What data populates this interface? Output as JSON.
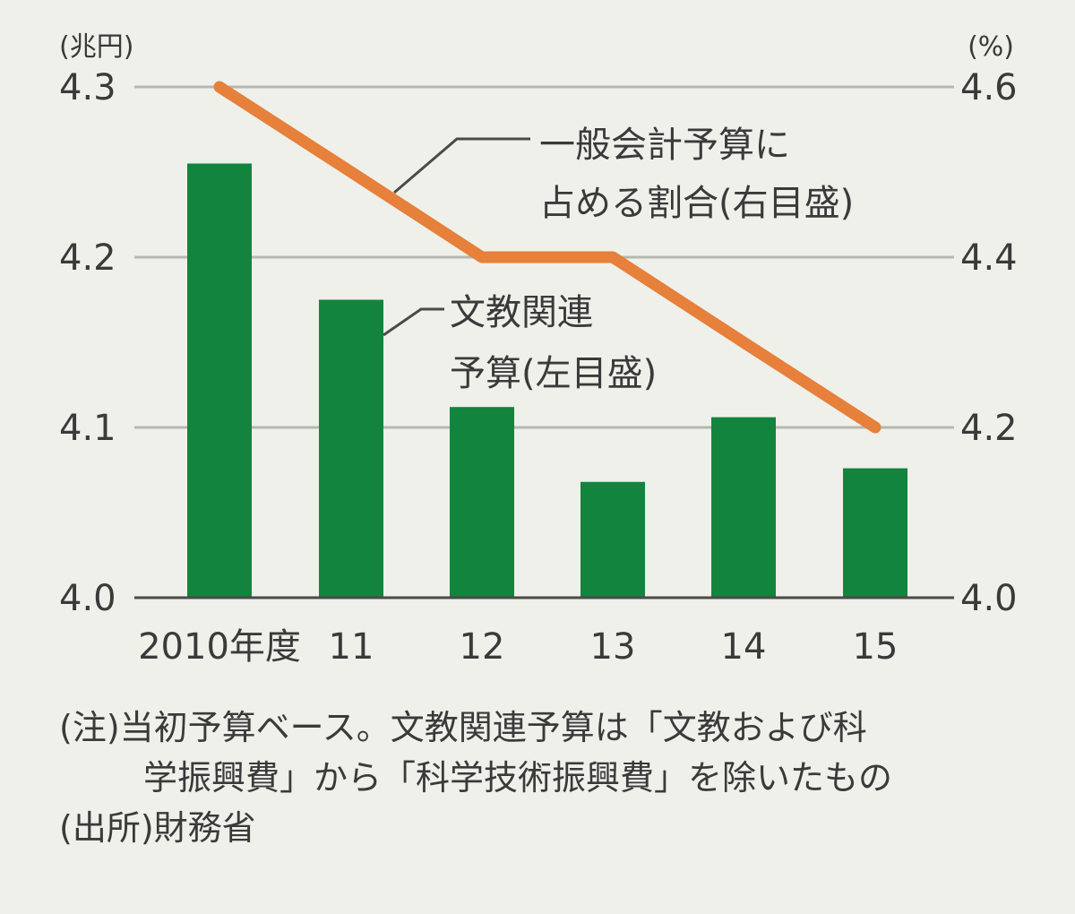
{
  "chart_data": {
    "type": "bar+line",
    "categories": [
      "2010年度",
      "11",
      "12",
      "13",
      "14",
      "15"
    ],
    "series": [
      {
        "name": "文教関連予算(左目盛)",
        "type": "bar",
        "axis": "left",
        "values": [
          4.255,
          4.175,
          4.112,
          4.068,
          4.106,
          4.076
        ],
        "color": "#13843d",
        "label_lines": [
          "文教関連",
          "予算(左目盛)"
        ]
      },
      {
        "name": "一般会計予算に占める割合(右目盛)",
        "type": "line",
        "axis": "right",
        "values": [
          4.6,
          4.5,
          4.4,
          4.4,
          4.3,
          4.2
        ],
        "color": "#e6803a",
        "label_lines": [
          "一般会計予算に",
          "占める割合(右目盛)"
        ]
      }
    ],
    "left_axis": {
      "unit": "(兆円)",
      "ylim": [
        4.0,
        4.3
      ],
      "ticks": [
        "4.0",
        "4.1",
        "4.2",
        "4.3"
      ]
    },
    "right_axis": {
      "unit": "(%)",
      "ylim": [
        4.0,
        4.6
      ],
      "ticks": [
        "4.0",
        "4.2",
        "4.4",
        "4.6"
      ]
    },
    "grid": true
  },
  "notes": {
    "note_line1": "(注)当初予算ベース。文教関連予算は「文教および科",
    "note_line2": "学振興費」から「科学技術振興費」を除いたもの",
    "source": "(出所)財務省"
  }
}
